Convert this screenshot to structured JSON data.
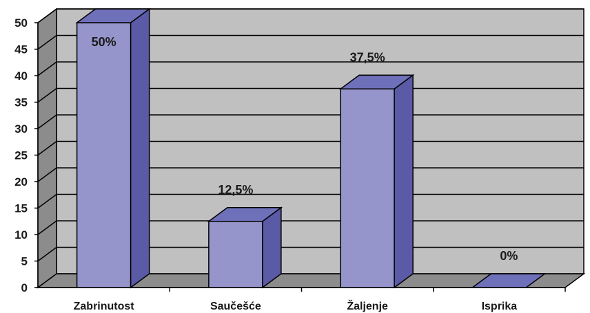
{
  "chart_data": {
    "type": "bar",
    "style": "3d-column",
    "categories": [
      "Zabrinutost",
      "Saučešće",
      "Žaljenje",
      "Isprika"
    ],
    "values": [
      50,
      12.5,
      37.5,
      0
    ],
    "data_labels": [
      "50%",
      "12,5%",
      "37,5%",
      "0%"
    ],
    "y_ticks": [
      "0",
      "5",
      "10",
      "15",
      "20",
      "25",
      "30",
      "35",
      "40",
      "45",
      "50"
    ],
    "ylim": [
      0,
      50
    ],
    "grid": true,
    "legend": "none",
    "colors": {
      "bar_front": "#9595cc",
      "bar_side": "#5a5aa6",
      "bar_top": "#6f70ba",
      "wall": "#c0c0c0",
      "wall_side": "#8c8c8c",
      "floor": "#8c8c8c"
    }
  }
}
